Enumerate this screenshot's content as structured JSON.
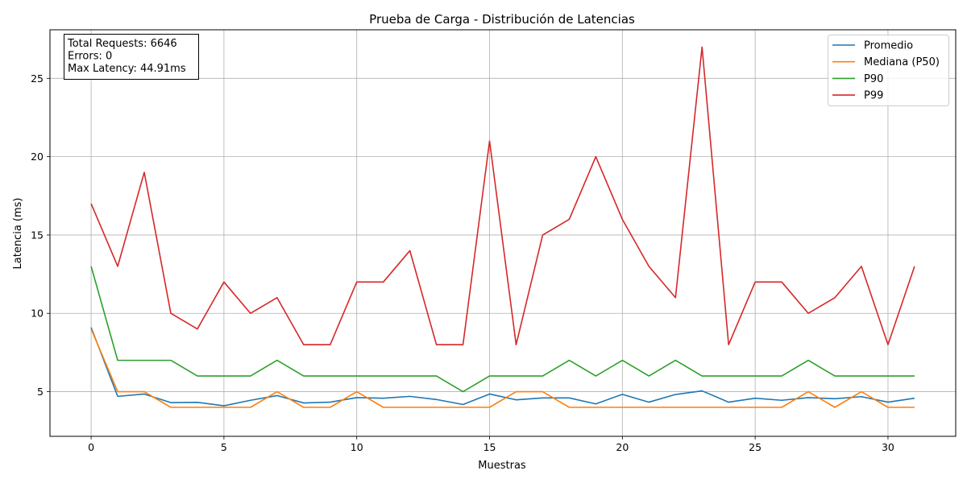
{
  "chart_data": {
    "type": "line",
    "title": "Prueba de Carga - Distribución de Latencias",
    "xlabel": "Muestras",
    "ylabel": "Latencia (ms)",
    "xlim": [
      -1.55,
      32.55
    ],
    "ylim": [
      2.15,
      28.1
    ],
    "xticks": [
      0,
      5,
      10,
      15,
      20,
      25,
      30
    ],
    "yticks": [
      5,
      10,
      15,
      20,
      25
    ],
    "grid": true,
    "legend_position": "top-right",
    "x": [
      0,
      1,
      2,
      3,
      4,
      5,
      6,
      7,
      8,
      9,
      10,
      11,
      12,
      13,
      14,
      15,
      16,
      17,
      18,
      19,
      20,
      21,
      22,
      23,
      24,
      25,
      26,
      27,
      28,
      29,
      30,
      31
    ],
    "series": [
      {
        "name": "Promedio",
        "color": "#1f77b4",
        "values": [
          9.1,
          4.7,
          4.85,
          4.3,
          4.32,
          4.1,
          4.45,
          4.75,
          4.28,
          4.33,
          4.62,
          4.58,
          4.7,
          4.5,
          4.18,
          4.85,
          4.48,
          4.6,
          4.6,
          4.22,
          4.83,
          4.33,
          4.82,
          5.05,
          4.33,
          4.58,
          4.45,
          4.62,
          4.55,
          4.68,
          4.33,
          4.58
        ]
      },
      {
        "name": "Mediana (P50)",
        "color": "#ff7f0e",
        "values": [
          9,
          5,
          5,
          4,
          4,
          4,
          4,
          5,
          4,
          4,
          5,
          4,
          4,
          4,
          4,
          4,
          5,
          5,
          4,
          4,
          4,
          4,
          4,
          4,
          4,
          4,
          4,
          5,
          4,
          5,
          4,
          4
        ]
      },
      {
        "name": "P90",
        "color": "#2ca02c",
        "values": [
          13,
          7,
          7,
          7,
          6,
          6,
          6,
          7,
          6,
          6,
          6,
          6,
          6,
          6,
          5,
          6,
          6,
          6,
          7,
          6,
          7,
          6,
          7,
          6,
          6,
          6,
          6,
          7,
          6,
          6,
          6,
          6
        ]
      },
      {
        "name": "P99",
        "color": "#d62728",
        "values": [
          17,
          13,
          19,
          10,
          9,
          12,
          10,
          11,
          8,
          8,
          12,
          12,
          14,
          8,
          8,
          21,
          8,
          15,
          16,
          20,
          16,
          13,
          11,
          27,
          8,
          12,
          12,
          10,
          11,
          13,
          8,
          13
        ]
      }
    ],
    "info_box": [
      "Total Requests: 6646",
      "Errors: 0",
      "Max Latency: 44.91ms"
    ]
  }
}
